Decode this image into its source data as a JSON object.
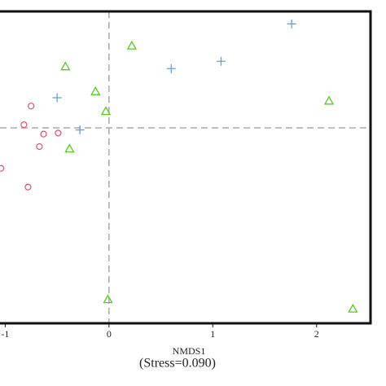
{
  "chart_data": {
    "type": "scatter",
    "x_label": "NMDS1",
    "annotation": "(Stress=0.090)",
    "xlim": [
      -1.05,
      2.52
    ],
    "ylim": [
      -1.88,
      1.12
    ],
    "xticks": [
      -1,
      0,
      1,
      2
    ],
    "zero_lines": true,
    "series": [
      {
        "marker": "circle",
        "color": "#d9546a",
        "x": [
          -0.75,
          -0.82,
          -0.63,
          -0.49,
          -0.67,
          -1.04,
          -0.78
        ],
        "values": [
          0.21,
          0.03,
          -0.06,
          -0.05,
          -0.18,
          -0.39,
          -0.57
        ]
      },
      {
        "marker": "plus",
        "color": "#6a9fd8",
        "x": [
          1.76,
          0.6,
          1.08,
          -0.5,
          -0.28
        ],
        "values": [
          1.0,
          0.57,
          0.64,
          0.29,
          -0.02
        ]
      },
      {
        "marker": "triangle",
        "color": "#55cc22",
        "x": [
          0.22,
          -0.42,
          -0.13,
          -0.03,
          -0.38,
          2.12,
          -0.01,
          2.35
        ],
        "values": [
          0.79,
          0.59,
          0.35,
          0.16,
          -0.2,
          0.26,
          -1.65,
          -1.74
        ]
      }
    ]
  }
}
